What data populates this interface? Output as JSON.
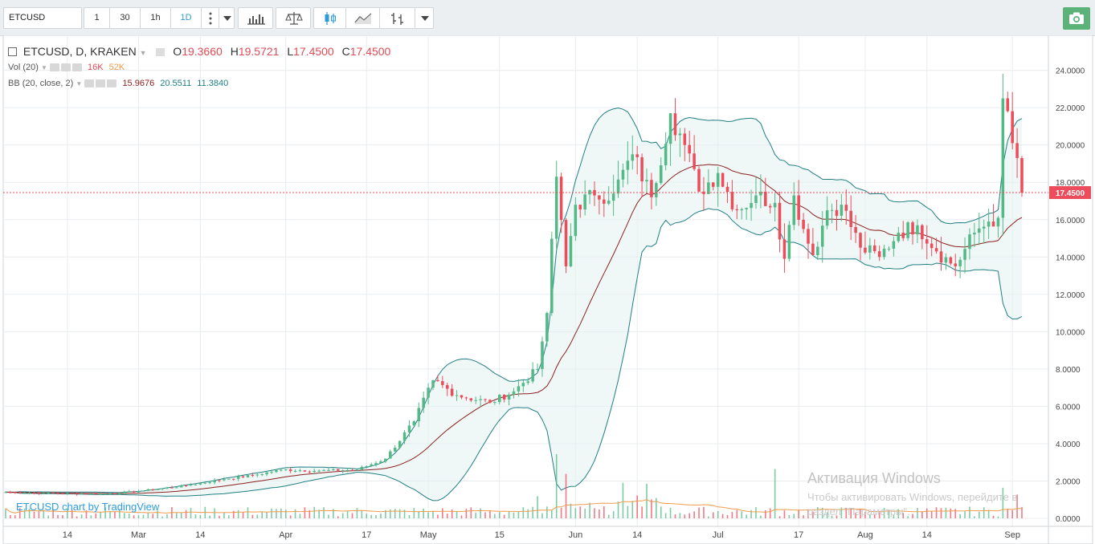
{
  "toolbar": {
    "symbol": "ETCUSD",
    "intervals": [
      "1",
      "30",
      "1h",
      "1D"
    ],
    "active_interval": "1D",
    "more_icon": "vertical-dots-icon",
    "dropdown_icon": "caret-down-icon",
    "indicators_icon": "bar-chart-icon",
    "compare_icon": "scales-icon",
    "chart_type_icons": [
      "candles-icon",
      "line-chart-icon",
      "bars-icon"
    ],
    "snapshot_icon": "camera-icon",
    "accent": "#2c9ad6",
    "snapshot_color": "#5cb37a"
  },
  "legend": {
    "title": "ETCUSD, D, KRAKEN",
    "o_label": "O",
    "o_value": "19.3660",
    "h_label": "H",
    "h_value": "19.5721",
    "l_label": "L",
    "l_value": "17.4500",
    "c_label": "C",
    "c_value": "17.4500",
    "vol_label": "Vol (20)",
    "vol_value1": "16K",
    "vol_value2": "52K",
    "bb_label": "BB (20, close, 2)",
    "bb_basis": "15.9676",
    "bb_upper": "20.5511",
    "bb_lower": "11.3840"
  },
  "price_tag": "17.4500",
  "brand": "ETCUSD chart by TradingView",
  "watermark": {
    "line1": "Активация Windows",
    "line2": "Чтобы активировать Windows, перейдите в",
    "line3": "раздел \"Параметры\"."
  },
  "colors": {
    "up": "#53b987",
    "down": "#eb4d5c",
    "bb_band": "#1f7e83",
    "bb_basis": "#8b1f1f",
    "vol_ma": "#f29b4a",
    "grid": "#e8ecef"
  },
  "chart_data": {
    "type": "candlestick",
    "y_axis_ticks": [
      "24.0000",
      "22.0000",
      "20.0000",
      "18.0000",
      "16.0000",
      "14.0000",
      "12.0000",
      "10.0000",
      "8.0000",
      "6.0000",
      "4.0000",
      "2.0000",
      "0.0000"
    ],
    "ylim": [
      0,
      24.5
    ],
    "x_axis_ticks": [
      "14",
      "Mar",
      "14",
      "Apr",
      "17",
      "May",
      "15",
      "Jun",
      "14",
      "Jul",
      "17",
      "Aug",
      "14",
      "Sep"
    ],
    "x_tick_days": [
      13,
      28,
      41,
      59,
      76,
      89,
      104,
      120,
      133,
      150,
      167,
      181,
      194,
      212
    ],
    "day_count": 216,
    "last_close": 17.45,
    "anchors": [
      [
        0,
        1.4
      ],
      [
        8,
        1.35
      ],
      [
        20,
        1.3
      ],
      [
        28,
        1.45
      ],
      [
        38,
        1.75
      ],
      [
        46,
        2.1
      ],
      [
        52,
        2.3
      ],
      [
        58,
        2.6
      ],
      [
        66,
        2.55
      ],
      [
        74,
        2.6
      ],
      [
        80,
        3.2
      ],
      [
        86,
        5.2
      ],
      [
        90,
        7.4
      ],
      [
        95,
        6.6
      ],
      [
        102,
        6.2
      ],
      [
        107,
        6.8
      ],
      [
        112,
        8.0
      ],
      [
        114,
        11.0
      ],
      [
        116,
        18.3
      ],
      [
        118,
        13.5
      ],
      [
        120,
        16.8
      ],
      [
        124,
        17.3
      ],
      [
        128,
        17.4
      ],
      [
        132,
        19.5
      ],
      [
        136,
        17.2
      ],
      [
        140,
        21.7
      ],
      [
        143,
        20.0
      ],
      [
        146,
        17.5
      ],
      [
        150,
        18.5
      ],
      [
        154,
        16.5
      ],
      [
        158,
        17.3
      ],
      [
        162,
        16.9
      ],
      [
        164,
        13.9
      ],
      [
        166,
        17.3
      ],
      [
        168,
        15.5
      ],
      [
        170,
        14.1
      ],
      [
        173,
        16.5
      ],
      [
        176,
        16.8
      ],
      [
        180,
        14.5
      ],
      [
        184,
        14.0
      ],
      [
        188,
        15.3
      ],
      [
        192,
        15.7
      ],
      [
        196,
        14.3
      ],
      [
        200,
        13.5
      ],
      [
        204,
        15.3
      ],
      [
        207,
        15.9
      ],
      [
        209,
        16.1
      ],
      [
        210,
        22.5
      ],
      [
        212,
        20.1
      ],
      [
        213,
        19.3
      ],
      [
        214,
        17.45
      ]
    ],
    "volume_ylim": [
      0,
      13
    ],
    "volume_spikes": [
      [
        116,
        6.5
      ],
      [
        118,
        4.5
      ],
      [
        130,
        3.6
      ],
      [
        135,
        3.5
      ],
      [
        162,
        5.0
      ],
      [
        210,
        3.1
      ],
      [
        213,
        2.4
      ]
    ],
    "bollinger": {
      "period": 20,
      "stddev": 2
    }
  }
}
